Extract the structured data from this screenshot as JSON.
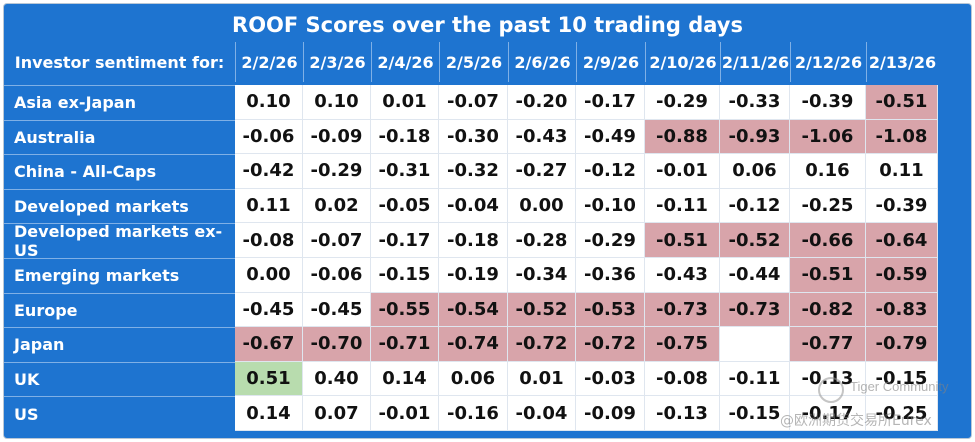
{
  "chart_data": {
    "type": "table",
    "title": "ROOF Scores over the past 10 trading days",
    "corner_label": "Investor sentiment for:",
    "columns": [
      "2/2/26",
      "2/3/26",
      "2/4/26",
      "2/5/26",
      "2/6/26",
      "2/9/26",
      "2/10/26",
      "2/11/26",
      "2/12/26",
      "2/13/26"
    ],
    "rows": [
      {
        "label": "Asia ex-Japan",
        "values": [
          "0.10",
          "0.10",
          "0.01",
          "-0.07",
          "-0.20",
          "-0.17",
          "-0.29",
          "-0.33",
          "-0.39",
          "-0.51"
        ],
        "highlight": [
          "",
          "",
          "",
          "",
          "",
          "",
          "",
          "",
          "",
          "neg"
        ]
      },
      {
        "label": "Australia",
        "values": [
          "-0.06",
          "-0.09",
          "-0.18",
          "-0.30",
          "-0.43",
          "-0.49",
          "-0.88",
          "-0.93",
          "-1.06",
          "-1.08"
        ],
        "highlight": [
          "",
          "",
          "",
          "",
          "",
          "",
          "neg",
          "neg",
          "neg",
          "neg"
        ]
      },
      {
        "label": "China - All-Caps",
        "values": [
          "-0.42",
          "-0.29",
          "-0.31",
          "-0.32",
          "-0.27",
          "-0.12",
          "-0.01",
          "0.06",
          "0.16",
          "0.11"
        ],
        "highlight": [
          "",
          "",
          "",
          "",
          "",
          "",
          "",
          "",
          "",
          ""
        ]
      },
      {
        "label": "Developed markets",
        "values": [
          "0.11",
          "0.02",
          "-0.05",
          "-0.04",
          "0.00",
          "-0.10",
          "-0.11",
          "-0.12",
          "-0.25",
          "-0.39"
        ],
        "highlight": [
          "",
          "",
          "",
          "",
          "",
          "",
          "",
          "",
          "",
          ""
        ]
      },
      {
        "label": "Developed markets ex-US",
        "values": [
          "-0.08",
          "-0.07",
          "-0.17",
          "-0.18",
          "-0.28",
          "-0.29",
          "-0.51",
          "-0.52",
          "-0.66",
          "-0.64"
        ],
        "highlight": [
          "",
          "",
          "",
          "",
          "",
          "",
          "neg",
          "neg",
          "neg",
          "neg"
        ]
      },
      {
        "label": "Emerging markets",
        "values": [
          "0.00",
          "-0.06",
          "-0.15",
          "-0.19",
          "-0.34",
          "-0.36",
          "-0.43",
          "-0.44",
          "-0.51",
          "-0.59"
        ],
        "highlight": [
          "",
          "",
          "",
          "",
          "",
          "",
          "",
          "",
          "neg",
          "neg"
        ]
      },
      {
        "label": "Europe",
        "values": [
          "-0.45",
          "-0.45",
          "-0.55",
          "-0.54",
          "-0.52",
          "-0.53",
          "-0.73",
          "-0.73",
          "-0.82",
          "-0.83"
        ],
        "highlight": [
          "",
          "",
          "neg",
          "neg",
          "neg",
          "neg",
          "neg",
          "neg",
          "neg",
          "neg"
        ]
      },
      {
        "label": "Japan",
        "values": [
          "-0.67",
          "-0.70",
          "-0.71",
          "-0.74",
          "-0.72",
          "-0.72",
          "-0.75",
          "",
          "-0.77",
          "-0.79"
        ],
        "highlight": [
          "neg",
          "neg",
          "neg",
          "neg",
          "neg",
          "neg",
          "neg",
          "",
          "neg",
          "neg"
        ]
      },
      {
        "label": "UK",
        "values": [
          "0.51",
          "0.40",
          "0.14",
          "0.06",
          "0.01",
          "-0.03",
          "-0.08",
          "-0.11",
          "-0.13",
          "-0.15"
        ],
        "highlight": [
          "pos",
          "",
          "",
          "",
          "",
          "",
          "",
          "",
          "",
          ""
        ]
      },
      {
        "label": "US",
        "values": [
          "0.14",
          "0.07",
          "-0.01",
          "-0.16",
          "-0.04",
          "-0.09",
          "-0.13",
          "-0.15",
          "-0.17",
          "-0.25"
        ],
        "highlight": [
          "",
          "",
          "",
          "",
          "",
          "",
          "",
          "",
          "",
          ""
        ]
      }
    ],
    "colors": {
      "header_bg": "#1e74d0",
      "negative_highlight": "#d8a4aa",
      "positive_highlight": "#b8dcae"
    }
  },
  "watermark": {
    "line1": "Tiger Community",
    "line2": "@欧洲期货交易所Eurex"
  }
}
